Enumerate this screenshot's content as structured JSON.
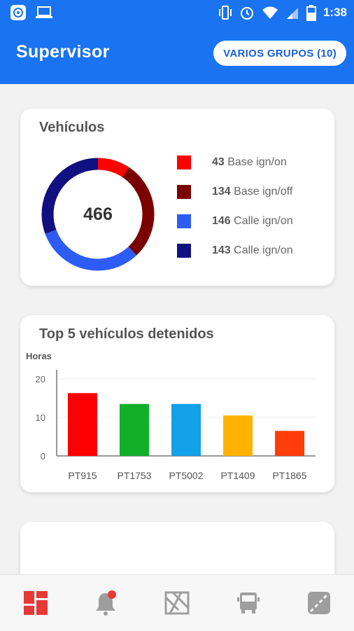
{
  "status_bar": {
    "time": "1:38",
    "left_icons": [
      "app-icon",
      "laptop-icon"
    ],
    "right_icons": [
      "vibrate-icon",
      "alarm-icon",
      "wifi-icon",
      "signal-icon",
      "battery-icon"
    ]
  },
  "app_bar": {
    "title": "Supervisor",
    "groups_button_label": "VARIOS GRUPOS (10)"
  },
  "vehicles_card": {
    "title": "Vehículos",
    "total": "466",
    "legend": [
      {
        "count": "43",
        "label": "Base ign/on",
        "color": "#ff0000"
      },
      {
        "count": "134",
        "label": "Base ign/off",
        "color": "#7a0000"
      },
      {
        "count": "146",
        "label": "Calle ign/on",
        "color": "#2d5cf5"
      },
      {
        "count": "143",
        "label": "Calle ign/on",
        "color": "#101080"
      }
    ]
  },
  "chart_data": {
    "type": "bar",
    "title": "Top 5 vehículos detenidos",
    "ylabel": "Horas",
    "xlabel": "",
    "categories": [
      "PT915",
      "PT1753",
      "PT5002",
      "PT1409",
      "PT1865"
    ],
    "values": [
      16.3,
      13.5,
      13.5,
      10.5,
      6.5
    ],
    "colors": [
      "#ff0000",
      "#12b02a",
      "#12a0e8",
      "#ffb300",
      "#ff3d0a"
    ],
    "ylim": [
      0,
      22
    ],
    "yticks": [
      "0",
      "10",
      "20"
    ],
    "grid": true,
    "legend": "none"
  },
  "bottom_nav": {
    "items": [
      {
        "icon": "dashboard-icon",
        "active": true
      },
      {
        "icon": "alerts-bell-icon",
        "active": false
      },
      {
        "icon": "map-routes-icon",
        "active": false
      },
      {
        "icon": "truck-icon",
        "active": false
      },
      {
        "icon": "road-icon",
        "active": false
      }
    ]
  }
}
